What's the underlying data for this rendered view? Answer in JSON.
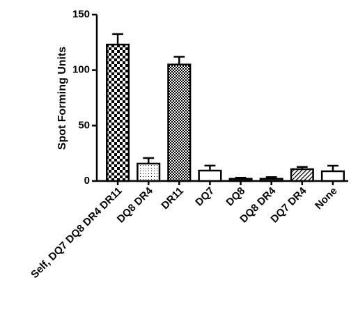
{
  "chart_data": {
    "type": "bar",
    "y_label": "Spot Forming Units",
    "categories": [
      "Self, DQ7 DQ8 DR4 DR11",
      "DQ8 DR4",
      "DR11",
      "DQ7",
      "DQ8",
      "DQ8 DR4",
      "DQ7 DR4",
      "None"
    ],
    "values": [
      123,
      15.7,
      105,
      9.4,
      2,
      2,
      10.7,
      8.8
    ],
    "errors": [
      9.5,
      5,
      7,
      4.5,
      1,
      1.5,
      2,
      5
    ],
    "color": "#000000",
    "ylim": [
      0,
      150
    ],
    "yticks": [
      0,
      50,
      100,
      150
    ],
    "grid": false
  }
}
